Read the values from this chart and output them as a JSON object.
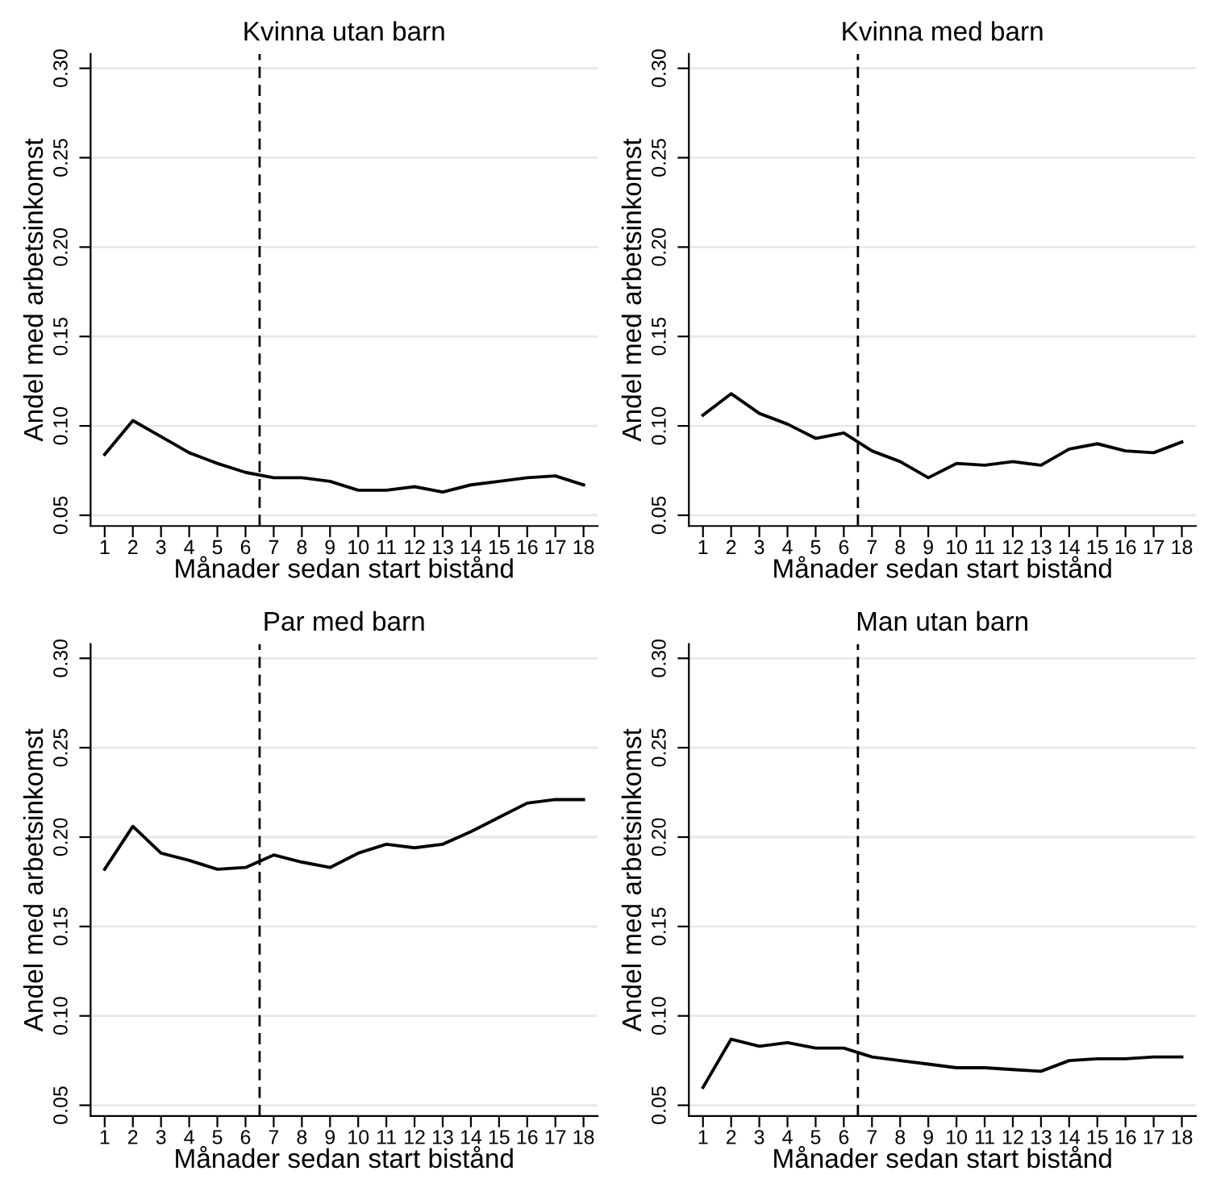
{
  "chart_data": [
    {
      "type": "line",
      "title": "Kvinna utan barn",
      "xlabel": "Månader sedan start bistånd",
      "ylabel": "Andel med arbetsinkomst",
      "x": [
        1,
        2,
        3,
        4,
        5,
        6,
        7,
        8,
        9,
        10,
        11,
        12,
        13,
        14,
        15,
        16,
        17,
        18
      ],
      "series": [
        {
          "color": "#000000",
          "values": [
            0.084,
            0.103,
            0.094,
            0.085,
            0.079,
            0.074,
            0.071,
            0.071,
            0.069,
            0.064,
            0.064,
            0.066,
            0.063,
            0.067,
            0.069,
            0.071,
            0.072,
            0.067
          ]
        }
      ],
      "xlim": [
        0.5,
        18.5
      ],
      "xticks": [
        1,
        2,
        3,
        4,
        5,
        6,
        7,
        8,
        9,
        10,
        11,
        12,
        13,
        14,
        15,
        16,
        17,
        18
      ],
      "ylim": [
        0.044,
        0.308
      ],
      "yticks": [
        {
          "value": 0.05,
          "label": "0.05"
        },
        {
          "value": 0.1,
          "label": "0.10"
        },
        {
          "value": 0.15,
          "label": "0.15"
        },
        {
          "value": 0.2,
          "label": "0.20"
        },
        {
          "value": 0.25,
          "label": "0.25"
        },
        {
          "value": 0.3,
          "label": "0.30"
        }
      ],
      "grid": "y",
      "ref_lines": [
        {
          "axis": "x",
          "value": 6.5,
          "color": "#000000",
          "line_style": "dashed"
        }
      ]
    },
    {
      "type": "line",
      "title": "Kvinna med barn",
      "xlabel": "Månader sedan start bistånd",
      "ylabel": "Andel med arbetsinkomst",
      "x": [
        1,
        2,
        3,
        4,
        5,
        6,
        7,
        8,
        9,
        10,
        11,
        12,
        13,
        14,
        15,
        16,
        17,
        18
      ],
      "series": [
        {
          "color": "#000000",
          "values": [
            0.106,
            0.118,
            0.107,
            0.101,
            0.093,
            0.096,
            0.086,
            0.08,
            0.071,
            0.079,
            0.078,
            0.08,
            0.078,
            0.087,
            0.09,
            0.086,
            0.085,
            0.091
          ]
        }
      ],
      "xlim": [
        0.5,
        18.5
      ],
      "xticks": [
        1,
        2,
        3,
        4,
        5,
        6,
        7,
        8,
        9,
        10,
        11,
        12,
        13,
        14,
        15,
        16,
        17,
        18
      ],
      "ylim": [
        0.044,
        0.308
      ],
      "yticks": [
        {
          "value": 0.05,
          "label": "0.05"
        },
        {
          "value": 0.1,
          "label": "0.10"
        },
        {
          "value": 0.15,
          "label": "0.15"
        },
        {
          "value": 0.2,
          "label": "0.20"
        },
        {
          "value": 0.25,
          "label": "0.25"
        },
        {
          "value": 0.3,
          "label": "0.30"
        }
      ],
      "grid": "y",
      "ref_lines": [
        {
          "axis": "x",
          "value": 6.5,
          "color": "#000000",
          "line_style": "dashed"
        }
      ]
    },
    {
      "type": "line",
      "title": "Par med barn",
      "xlabel": "Månader sedan start bistånd",
      "ylabel": "Andel med arbetsinkomst",
      "x": [
        1,
        2,
        3,
        4,
        5,
        6,
        7,
        8,
        9,
        10,
        11,
        12,
        13,
        14,
        15,
        16,
        17,
        18
      ],
      "series": [
        {
          "color": "#000000",
          "values": [
            0.182,
            0.206,
            0.191,
            0.187,
            0.182,
            0.183,
            0.19,
            0.186,
            0.183,
            0.191,
            0.196,
            0.194,
            0.196,
            0.203,
            0.211,
            0.219,
            0.221,
            0.221
          ]
        }
      ],
      "xlim": [
        0.5,
        18.5
      ],
      "xticks": [
        1,
        2,
        3,
        4,
        5,
        6,
        7,
        8,
        9,
        10,
        11,
        12,
        13,
        14,
        15,
        16,
        17,
        18
      ],
      "ylim": [
        0.044,
        0.308
      ],
      "yticks": [
        {
          "value": 0.05,
          "label": "0.05"
        },
        {
          "value": 0.1,
          "label": "0.10"
        },
        {
          "value": 0.15,
          "label": "0.15"
        },
        {
          "value": 0.2,
          "label": "0.20"
        },
        {
          "value": 0.25,
          "label": "0.25"
        },
        {
          "value": 0.3,
          "label": "0.30"
        }
      ],
      "grid": "y",
      "ref_lines": [
        {
          "axis": "x",
          "value": 6.5,
          "color": "#000000",
          "line_style": "dashed"
        }
      ]
    },
    {
      "type": "line",
      "title": "Man utan barn",
      "xlabel": "Månader sedan start bistånd",
      "ylabel": "Andel med arbetsinkomst",
      "x": [
        1,
        2,
        3,
        4,
        5,
        6,
        7,
        8,
        9,
        10,
        11,
        12,
        13,
        14,
        15,
        16,
        17,
        18
      ],
      "series": [
        {
          "color": "#000000",
          "values": [
            0.06,
            0.087,
            0.083,
            0.085,
            0.082,
            0.082,
            0.077,
            0.075,
            0.073,
            0.071,
            0.071,
            0.07,
            0.069,
            0.075,
            0.076,
            0.076,
            0.077,
            0.077
          ]
        }
      ],
      "xlim": [
        0.5,
        18.5
      ],
      "xticks": [
        1,
        2,
        3,
        4,
        5,
        6,
        7,
        8,
        9,
        10,
        11,
        12,
        13,
        14,
        15,
        16,
        17,
        18
      ],
      "ylim": [
        0.044,
        0.308
      ],
      "yticks": [
        {
          "value": 0.05,
          "label": "0.05"
        },
        {
          "value": 0.1,
          "label": "0.10"
        },
        {
          "value": 0.15,
          "label": "0.15"
        },
        {
          "value": 0.2,
          "label": "0.20"
        },
        {
          "value": 0.25,
          "label": "0.25"
        },
        {
          "value": 0.3,
          "label": "0.30"
        }
      ],
      "grid": "y",
      "ref_lines": [
        {
          "axis": "x",
          "value": 6.5,
          "color": "#000000",
          "line_style": "dashed"
        }
      ]
    }
  ]
}
